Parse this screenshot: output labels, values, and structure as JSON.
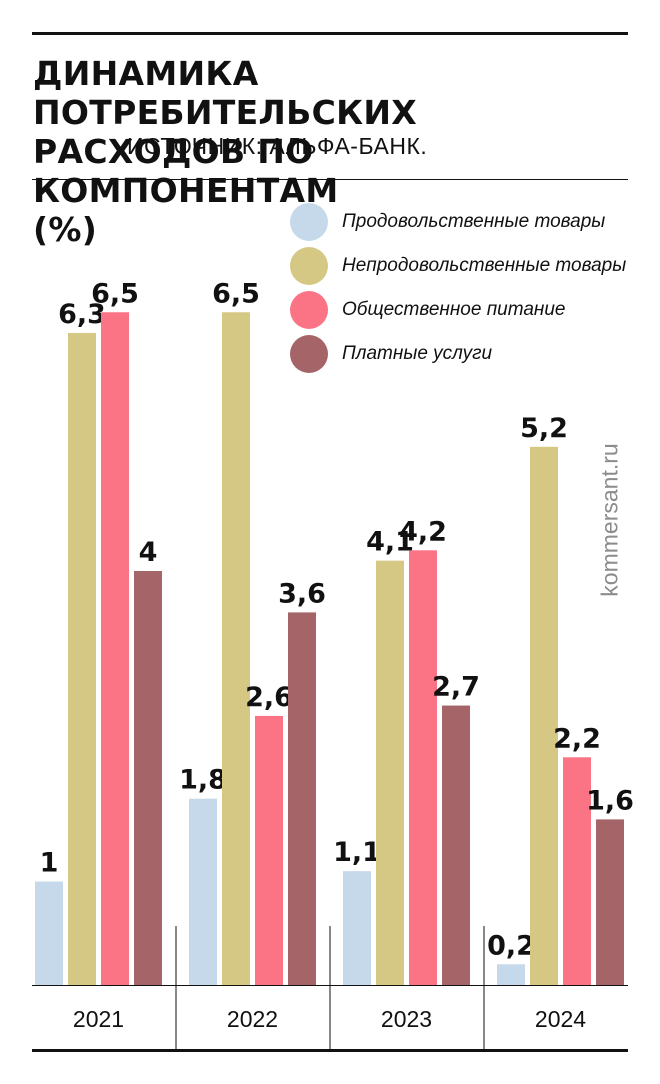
{
  "header": {
    "title": "ДИНАМИКА ПОТРЕБИТЕЛЬСКИХ РАСХОДОВ ПО КОМПОНЕНТАМ",
    "unit": "(%)",
    "source": "ИСТОЧНИК: АЛЬФА-БАНК."
  },
  "watermark": "kommersant.ru",
  "chart_data": {
    "type": "bar",
    "title": "ДИНАМИКА ПОТРЕБИТЕЛЬСКИХ РАСХОДОВ ПО КОМПОНЕНТАМ (%)",
    "categories": [
      "2021",
      "2022",
      "2023",
      "2024"
    ],
    "series": [
      {
        "name": "Продовольственные товары",
        "color": "#c6d9ea",
        "values": [
          1,
          1.8,
          1.1,
          0.2
        ],
        "labels": [
          "1",
          "1,8",
          "1,1",
          "0,2"
        ]
      },
      {
        "name": "Непродовольственные товары",
        "color": "#d5c885",
        "values": [
          6.3,
          6.5,
          4.1,
          5.2
        ],
        "labels": [
          "6,3",
          "6,5",
          "4,1",
          "5,2"
        ]
      },
      {
        "name": "Общественное питание",
        "color": "#fb7486",
        "values": [
          6.5,
          2.6,
          4.2,
          2.2
        ],
        "labels": [
          "6,5",
          "2,6",
          "4,2",
          "2,2"
        ]
      },
      {
        "name": "Платные услуги",
        "color": "#a56568",
        "values": [
          4,
          3.6,
          2.7,
          1.6
        ],
        "labels": [
          "4",
          "3,6",
          "2,7",
          "1,6"
        ]
      }
    ],
    "legend": "top-right",
    "grid": false,
    "ylim": [
      0,
      6.5
    ]
  }
}
